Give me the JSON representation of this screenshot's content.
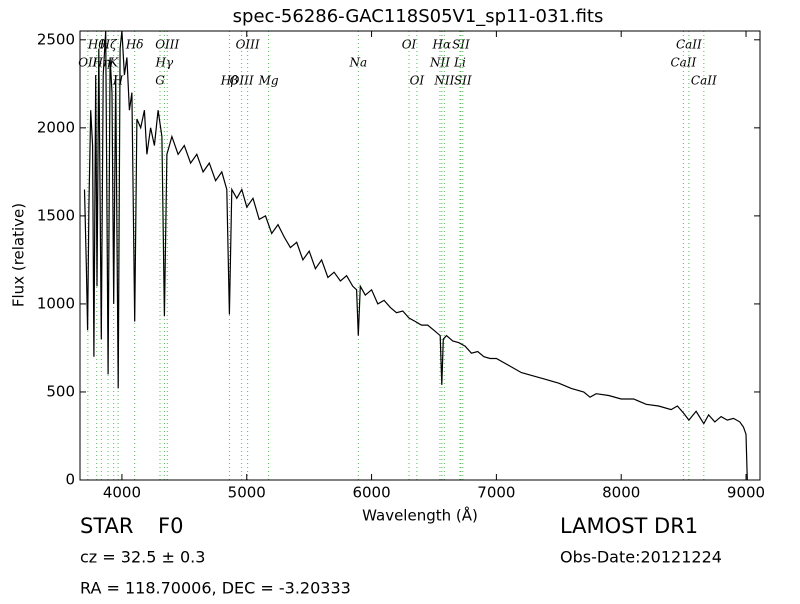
{
  "chart_data": {
    "type": "line",
    "title": "spec-56286-GAC118S05V1_sp11-031.fits",
    "xlabel": "Wavelength (Å)",
    "ylabel": "Flux (relative)",
    "xlim": [
      3664,
      9112
    ],
    "ylim": [
      0,
      2550
    ],
    "xticks": [
      4000,
      5000,
      6000,
      7000,
      8000,
      9000
    ],
    "yticks": [
      0,
      500,
      1000,
      1500,
      2000,
      2500
    ],
    "grid": false,
    "x": [
      3700,
      3715,
      3725,
      3735,
      3750,
      3765,
      3775,
      3790,
      3800,
      3815,
      3835,
      3850,
      3870,
      3889,
      3905,
      3920,
      3934,
      3950,
      3970,
      3985,
      4000,
      4020,
      4040,
      4060,
      4080,
      4102,
      4120,
      4150,
      4180,
      4200,
      4230,
      4260,
      4290,
      4320,
      4340,
      4360,
      4400,
      4450,
      4500,
      4550,
      4600,
      4650,
      4700,
      4750,
      4800,
      4840,
      4861,
      4880,
      4920,
      4960,
      5000,
      5050,
      5100,
      5150,
      5200,
      5250,
      5300,
      5350,
      5400,
      5450,
      5500,
      5550,
      5600,
      5650,
      5700,
      5750,
      5800,
      5850,
      5880,
      5894,
      5910,
      5950,
      6000,
      6050,
      6100,
      6150,
      6200,
      6250,
      6300,
      6350,
      6400,
      6450,
      6500,
      6550,
      6563,
      6575,
      6600,
      6650,
      6700,
      6750,
      6800,
      6850,
      6900,
      6950,
      7000,
      7100,
      7200,
      7300,
      7400,
      7500,
      7600,
      7700,
      7750,
      7800,
      7900,
      8000,
      8100,
      8200,
      8300,
      8400,
      8450,
      8500,
      8542,
      8600,
      8662,
      8700,
      8750,
      8800,
      8850,
      8900,
      8950,
      8980,
      9000,
      9010
    ],
    "series": [
      {
        "color": "#000000",
        "values": [
          1650,
          1200,
          850,
          1550,
          2100,
          1900,
          700,
          2300,
          1100,
          2450,
          800,
          2300,
          2550,
          600,
          2400,
          2200,
          1000,
          2300,
          520,
          2450,
          2550,
          2300,
          2400,
          2100,
          2200,
          900,
          2050,
          2000,
          2100,
          1850,
          2000,
          1900,
          2100,
          1950,
          930,
          1850,
          1950,
          1850,
          1900,
          1800,
          1850,
          1750,
          1800,
          1700,
          1750,
          1650,
          940,
          1650,
          1600,
          1650,
          1550,
          1600,
          1480,
          1500,
          1400,
          1450,
          1380,
          1320,
          1350,
          1250,
          1300,
          1200,
          1250,
          1150,
          1180,
          1130,
          1160,
          1100,
          1080,
          820,
          1100,
          1050,
          1080,
          1000,
          1020,
          980,
          950,
          960,
          920,
          900,
          880,
          880,
          850,
          820,
          540,
          800,
          820,
          790,
          780,
          760,
          720,
          730,
          700,
          690,
          690,
          650,
          610,
          590,
          570,
          550,
          520,
          500,
          470,
          490,
          480,
          460,
          460,
          430,
          420,
          400,
          420,
          380,
          340,
          390,
          320,
          370,
          330,
          360,
          340,
          350,
          330,
          300,
          260,
          0
        ]
      }
    ],
    "line_color": "#55bb55",
    "lines": [
      {
        "label": "OII",
        "wavelength": 3727
      },
      {
        "label": "Hθ",
        "wavelength": 3798
      },
      {
        "label": "Hη",
        "wavelength": 3835
      },
      {
        "label": "Hζ",
        "wavelength": 3889
      },
      {
        "label": "K",
        "wavelength": 3934
      },
      {
        "label": "H",
        "wavelength": 3969
      },
      {
        "label": "Hδ",
        "wavelength": 4102
      },
      {
        "label": "G",
        "wavelength": 4305
      },
      {
        "label": "Hγ",
        "wavelength": 4340
      },
      {
        "label": "OIII",
        "wavelength": 4363
      },
      {
        "label": "Hβ",
        "wavelength": 4861
      },
      {
        "label": "OIII",
        "wavelength": 4959
      },
      {
        "label": "OIII",
        "wavelength": 5007
      },
      {
        "label": "Mg",
        "wavelength": 5175
      },
      {
        "label": "Na",
        "wavelength": 5894
      },
      {
        "label": "OI",
        "wavelength": 6300
      },
      {
        "label": "OI",
        "wavelength": 6363
      },
      {
        "label": "NII",
        "wavelength": 6548
      },
      {
        "label": "Hα",
        "wavelength": 6563
      },
      {
        "label": "NII",
        "wavelength": 6583
      },
      {
        "label": "Li",
        "wavelength": 6708
      },
      {
        "label": "SII",
        "wavelength": 6716
      },
      {
        "label": "SII",
        "wavelength": 6731
      },
      {
        "label": "CaII",
        "wavelength": 8498
      },
      {
        "label": "CaII",
        "wavelength": 8542
      },
      {
        "label": "CaII",
        "wavelength": 8662
      }
    ],
    "annotations": {
      "class": "STAR",
      "subclass": "F0",
      "redshift": "cz = 32.5 ± 0.3",
      "coords": "RA = 118.70006, DEC = -3.20333",
      "survey": "LAMOST DR1",
      "obs_date": "Obs-Date:20121224"
    }
  }
}
